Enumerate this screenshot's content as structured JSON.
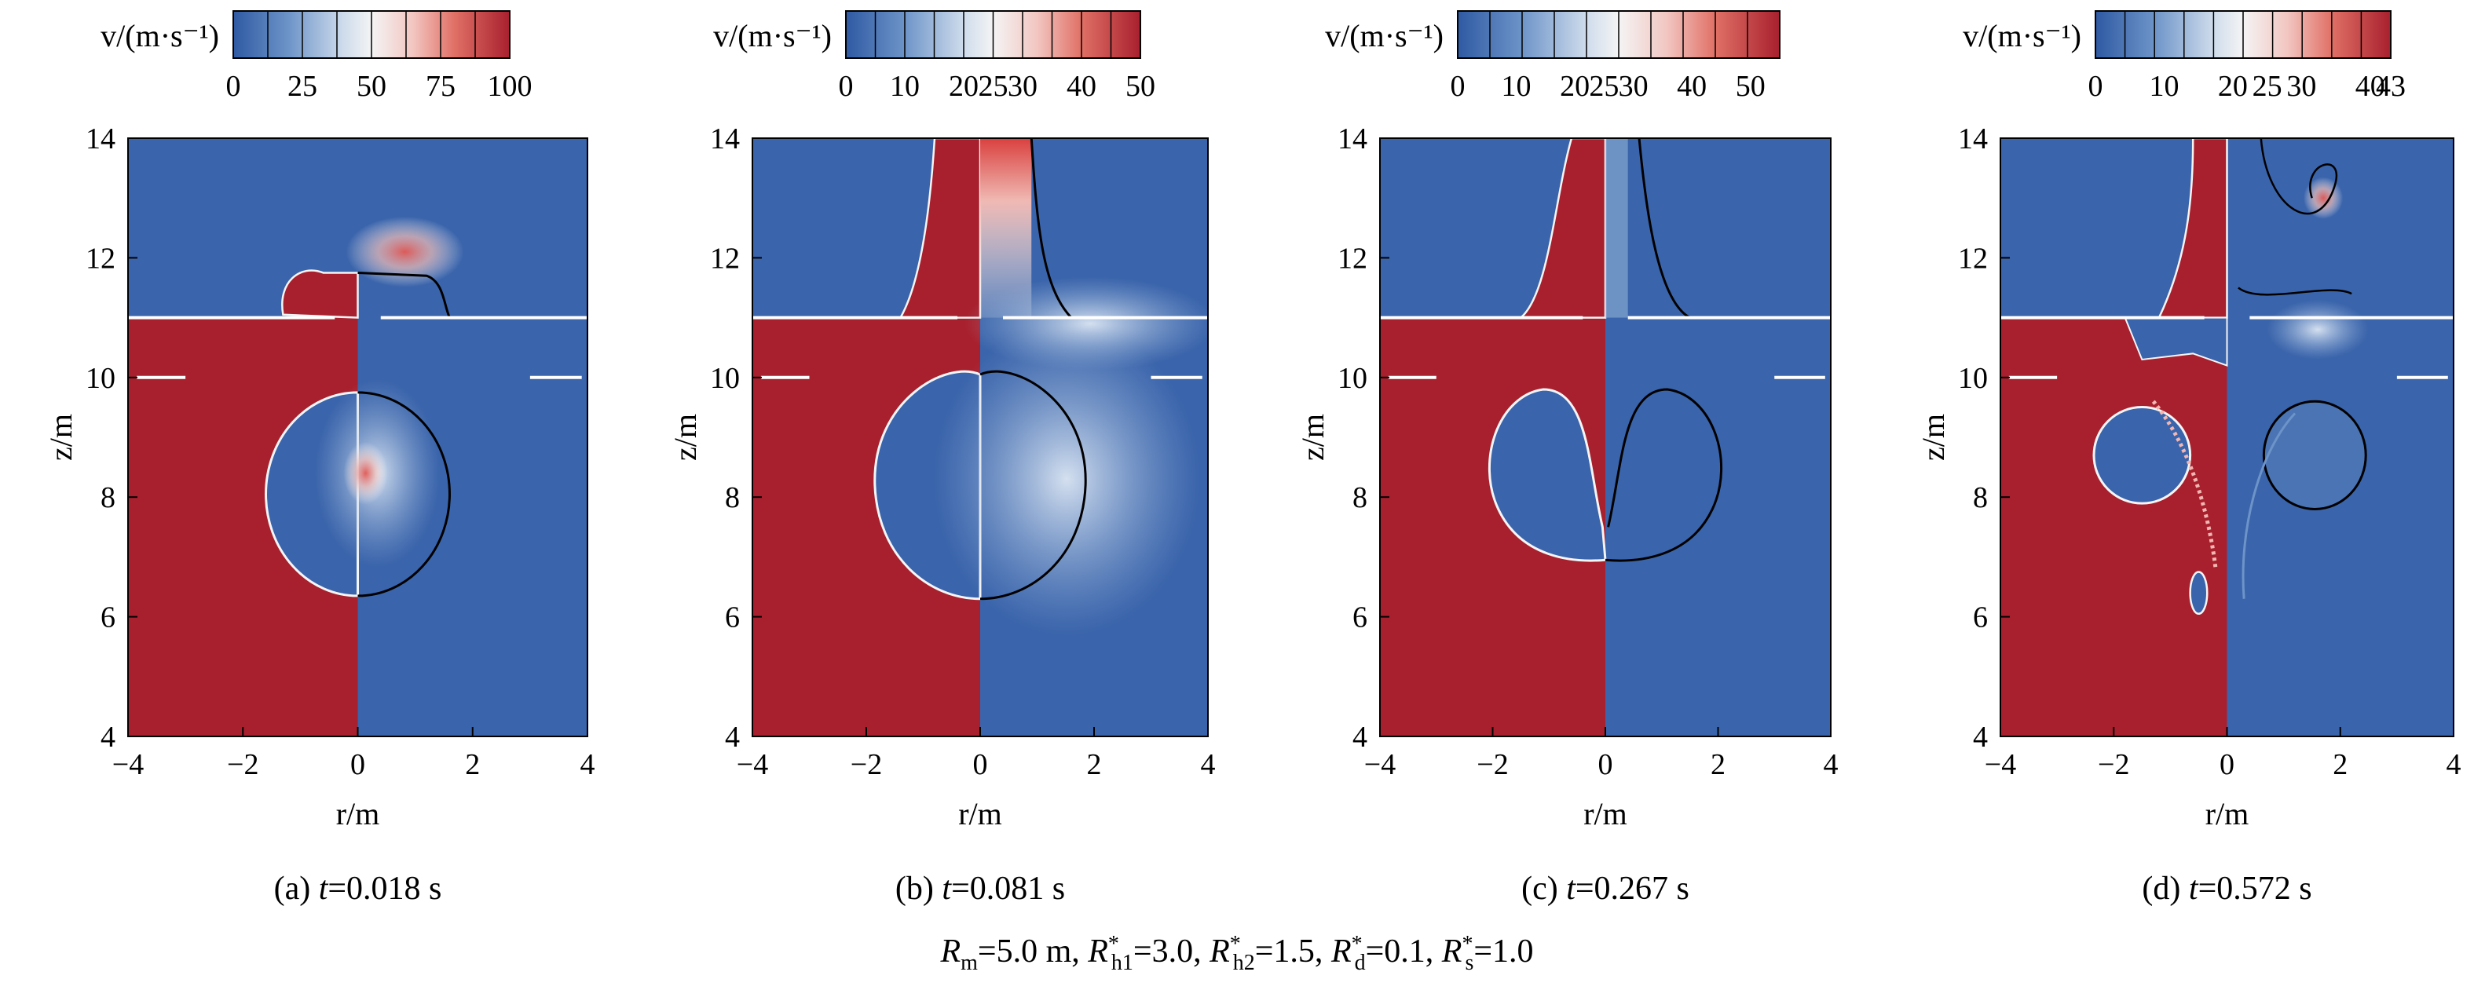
{
  "figure": {
    "parameters_caption": {
      "parts": [
        {
          "text": "R",
          "style": "italic"
        },
        {
          "text": "m",
          "style": "sub"
        },
        {
          "text": "=5.0 m, ",
          "style": "normal"
        },
        {
          "text": "R",
          "style": "italic"
        },
        {
          "text": "*",
          "style": "sup"
        },
        {
          "text": "h1",
          "style": "sub"
        },
        {
          "text": "=3.0, ",
          "style": "normal"
        },
        {
          "text": "R",
          "style": "italic"
        },
        {
          "text": "*",
          "style": "sup"
        },
        {
          "text": "h2",
          "style": "sub"
        },
        {
          "text": "=1.5, ",
          "style": "normal"
        },
        {
          "text": "R",
          "style": "italic"
        },
        {
          "text": "*",
          "style": "sup"
        },
        {
          "text": "d",
          "style": "sub"
        },
        {
          "text": "=0.1, ",
          "style": "normal"
        },
        {
          "text": "R",
          "style": "italic"
        },
        {
          "text": "*",
          "style": "sup"
        },
        {
          "text": "s",
          "style": "sub"
        },
        {
          "text": "=1.0",
          "style": "normal"
        }
      ]
    },
    "colors": {
      "low": "#3a64ab",
      "mid": "#f2f3f5",
      "high": "#a8202e",
      "liquid": "#a8202e",
      "gas": "#3a64ab",
      "interface_left": "#f5f5f5",
      "interface_right": "#000000",
      "wall": "#ffffff"
    }
  },
  "chart_data": [
    {
      "type": "heatmap",
      "panel_label": "(a)",
      "time_label": "t",
      "time_value": "=0.018 s",
      "xlabel": "r/m",
      "ylabel": "z/m",
      "xlim": [
        -4,
        4
      ],
      "ylim": [
        4,
        14
      ],
      "xticks": [
        "−4",
        "−2",
        "0",
        "2",
        "4"
      ],
      "yticks": [
        "4",
        "6",
        "8",
        "10",
        "12",
        "14"
      ],
      "grid": false,
      "colorbar": {
        "label": "v/(m·s⁻¹)",
        "min": 0,
        "max": 100,
        "tick_values": [
          0,
          25,
          50,
          75,
          100
        ],
        "tick_labels": [
          "0",
          "25",
          "50",
          "75",
          "100"
        ],
        "segments": 8
      },
      "bubble": {
        "center_r": 0,
        "center_z": 8.05,
        "radius_r": 1.6,
        "bottom_z": 6.35,
        "top_z": 9.75
      },
      "free_surface_z": 11.0,
      "lower_surface_z": 10.0
    },
    {
      "type": "heatmap",
      "panel_label": "(b)",
      "time_label": "t",
      "time_value": "=0.081 s",
      "xlabel": "r/m",
      "ylabel": "z/m",
      "xlim": [
        -4,
        4
      ],
      "ylim": [
        4,
        14
      ],
      "xticks": [
        "−4",
        "−2",
        "0",
        "2",
        "4"
      ],
      "yticks": [
        "4",
        "6",
        "8",
        "10",
        "12",
        "14"
      ],
      "grid": false,
      "colorbar": {
        "label": "v/(m·s⁻¹)",
        "min": 0,
        "max": 50,
        "tick_values": [
          0,
          10,
          20,
          25,
          30,
          40,
          50
        ],
        "tick_labels": [
          "0",
          "10",
          "20",
          "25",
          "30",
          "40",
          "50"
        ],
        "segments": 10
      },
      "bubble": {
        "center_r": 0,
        "center_z": 8.2,
        "radius_r": 1.9,
        "bottom_z": 6.3,
        "top_z": 10.1
      },
      "free_surface_z": 11.0,
      "lower_surface_z": 10.0
    },
    {
      "type": "heatmap",
      "panel_label": "(c)",
      "time_label": "t",
      "time_value": "=0.267 s",
      "xlabel": "r/m",
      "ylabel": "z/m",
      "xlim": [
        -4,
        4
      ],
      "ylim": [
        4,
        14
      ],
      "xticks": [
        "−4",
        "−2",
        "0",
        "2",
        "4"
      ],
      "yticks": [
        "4",
        "6",
        "8",
        "10",
        "12",
        "14"
      ],
      "grid": false,
      "colorbar": {
        "label": "v/(m·s⁻¹)",
        "min": 0,
        "max": 55,
        "tick_values": [
          0,
          10,
          20,
          25,
          30,
          40,
          50
        ],
        "tick_labels": [
          "0",
          "10",
          "20",
          "25",
          "30",
          "40",
          "50"
        ],
        "segments": 10
      },
      "bubble": {
        "center_r": 0.8,
        "center_z": 8.4,
        "radius_r": 1.5,
        "bottom_z": 6.9,
        "top_z": 9.8
      },
      "free_surface_z": 11.0,
      "lower_surface_z": 10.0
    },
    {
      "type": "heatmap",
      "panel_label": "(d)",
      "time_label": "t",
      "time_value": "=0.572 s",
      "xlabel": "r/m",
      "ylabel": "z/m",
      "xlim": [
        -4,
        4
      ],
      "ylim": [
        4,
        14
      ],
      "xticks": [
        "−4",
        "−2",
        "0",
        "2",
        "4"
      ],
      "yticks": [
        "4",
        "6",
        "8",
        "10",
        "12",
        "14"
      ],
      "grid": false,
      "colorbar": {
        "label": "v/(m·s⁻¹)",
        "min": 0,
        "max": 43,
        "tick_values": [
          0,
          10,
          20,
          25,
          30,
          40,
          43
        ],
        "tick_labels": [
          "0",
          "10",
          "20",
          "25",
          "30",
          "40",
          "43"
        ],
        "segments": 10
      },
      "bubble": {
        "center_r": 1.5,
        "center_z": 8.7,
        "radius_r": 0.9,
        "bottom_z": 7.8,
        "top_z": 9.6
      },
      "free_surface_z": 11.0,
      "lower_surface_z": 10.0
    }
  ]
}
